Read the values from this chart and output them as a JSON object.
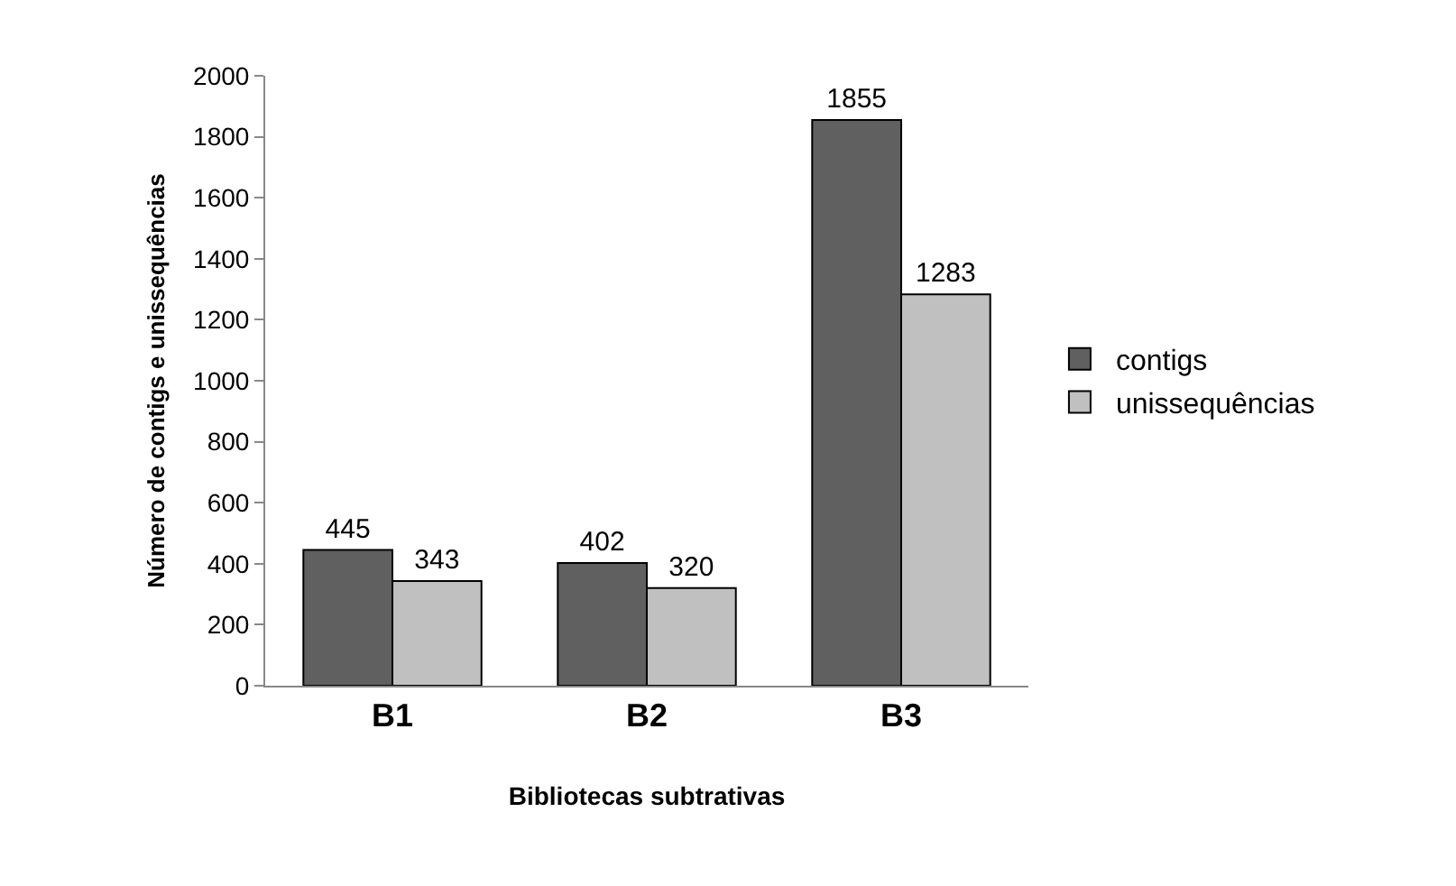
{
  "chart_data": {
    "type": "bar",
    "xlabel": "Bibliotecas subtrativas",
    "ylabel": "Número de contigs e unissequências",
    "categories": [
      "B1",
      "B2",
      "B3"
    ],
    "series": [
      {
        "name": "contigs",
        "color": "#606060",
        "values": [
          445,
          402,
          1855
        ]
      },
      {
        "name": "unissequências",
        "color": "#c0c0c0",
        "values": [
          343,
          320,
          1283
        ]
      }
    ],
    "ylim": [
      0,
      2000
    ],
    "yticks": [
      0,
      200,
      400,
      600,
      800,
      1000,
      1200,
      1400,
      1600,
      1800,
      2000
    ],
    "grid": false,
    "legend": "right",
    "data_labels": true
  }
}
